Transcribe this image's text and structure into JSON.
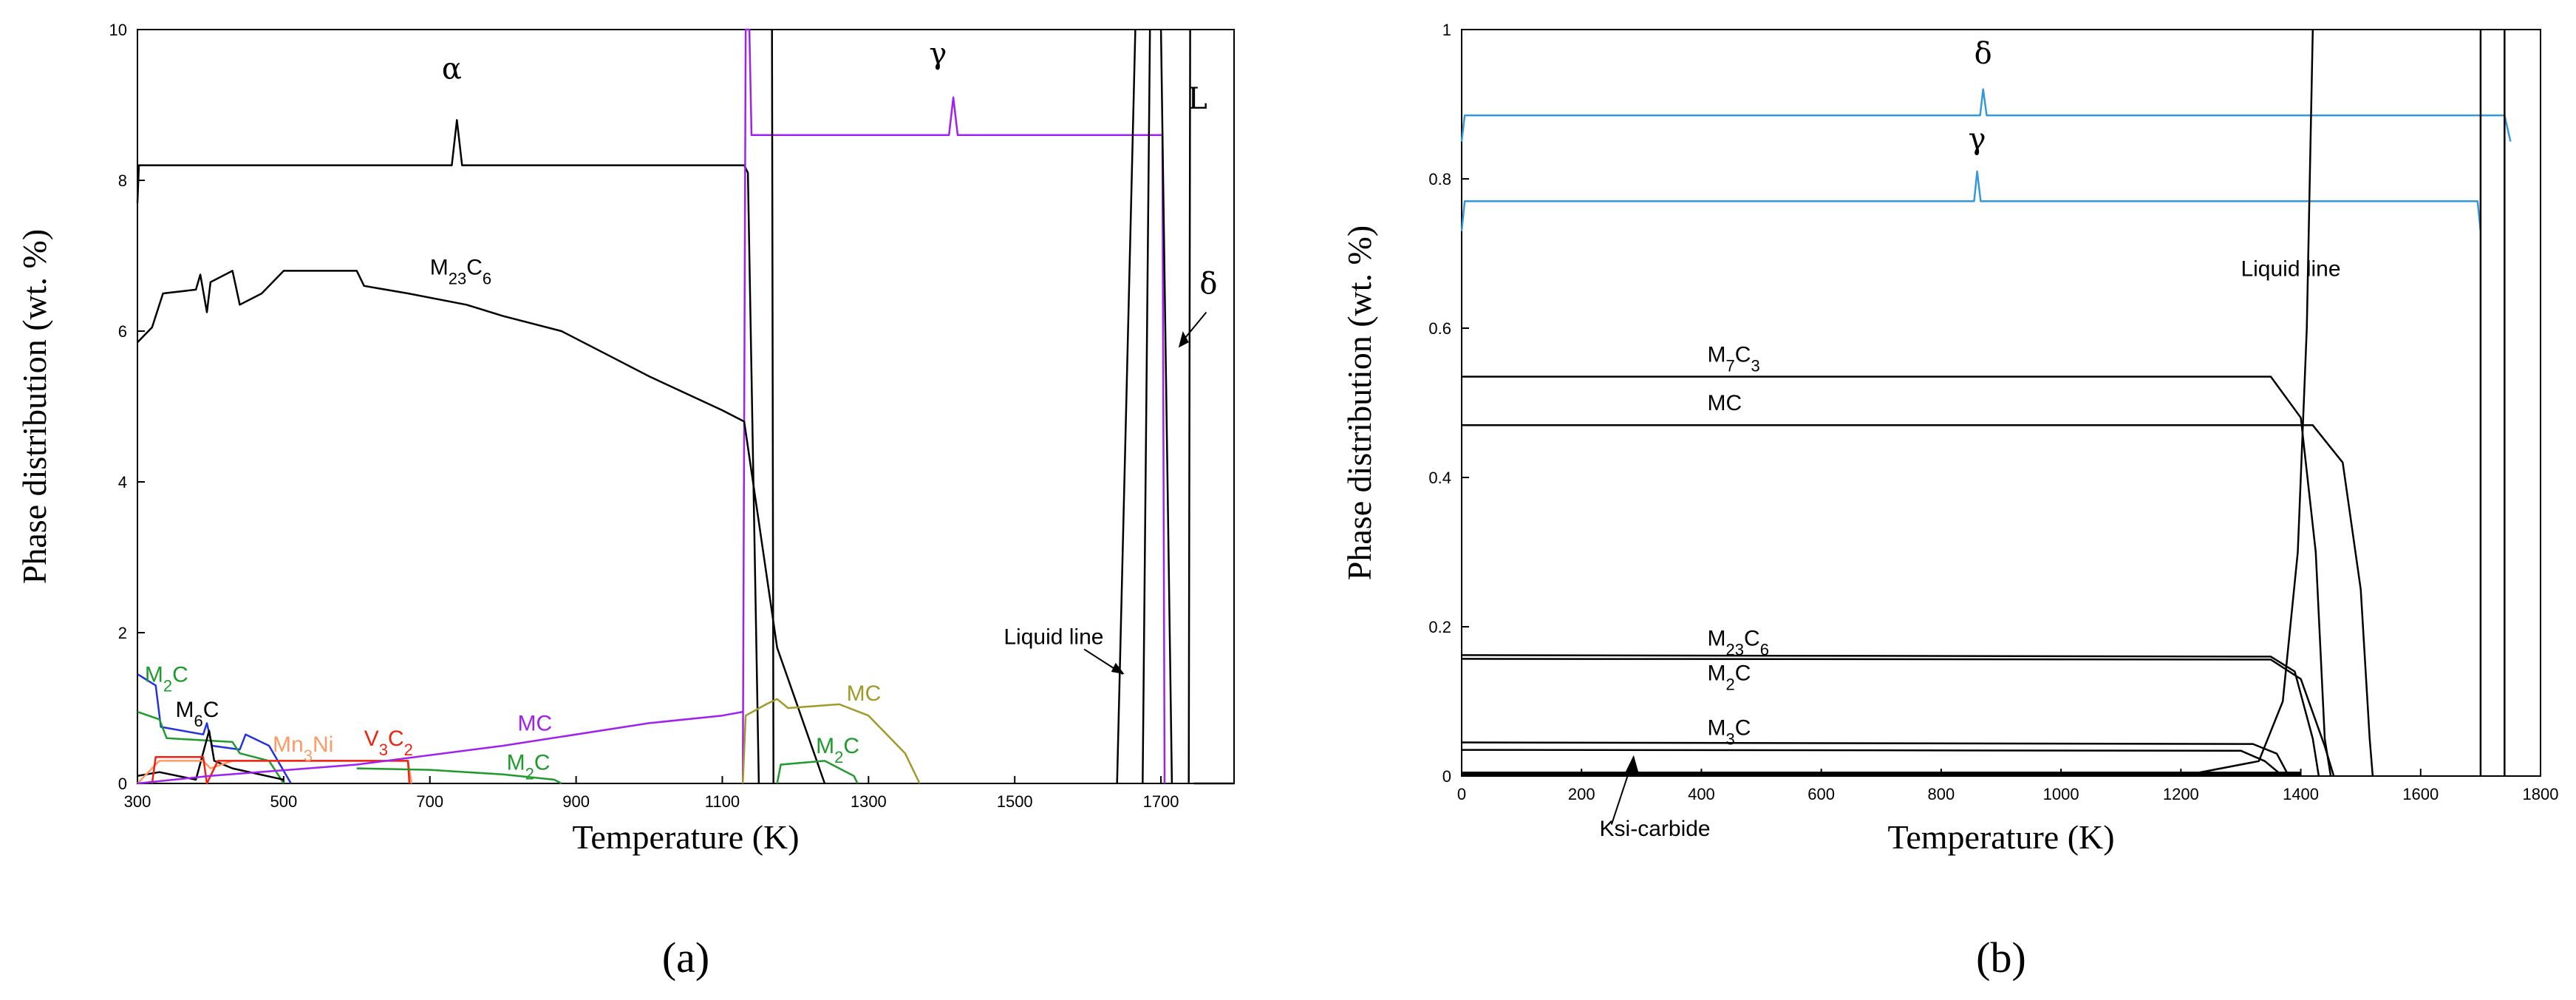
{
  "chart_data": [
    {
      "type": "line",
      "panel_label": "(a)",
      "xlabel": "Temperature (K)",
      "ylabel": "Phase distribution (wt. %)",
      "xlim": [
        300,
        1800
      ],
      "ylim": [
        0,
        10
      ],
      "xticks": [
        "300",
        "500",
        "700",
        "900",
        "1100",
        "1300",
        "1500",
        "1700"
      ],
      "yticks": [
        "0",
        "2",
        "4",
        "6",
        "8",
        "10"
      ],
      "colors": {
        "black": "#000000",
        "purple": "#a020f0",
        "olive": "#a09a2a",
        "green": "#1f9a2c",
        "blue": "#2233dd",
        "red": "#ee2211",
        "orange": "#ff9966"
      },
      "series": [
        {
          "name": "alpha",
          "color": "black",
          "points": [
            [
              300,
              7.7
            ],
            [
              302,
              8.2
            ],
            [
              730,
              8.2
            ],
            [
              737,
              8.8
            ],
            [
              744,
              8.2
            ],
            [
              1130,
              8.2
            ],
            [
              1135,
              8.1
            ],
            [
              1150,
              0
            ]
          ]
        },
        {
          "name": "gamma",
          "color": "purple",
          "points": [
            [
              1128,
              0
            ],
            [
              1132,
              10
            ],
            [
              1137,
              10
            ],
            [
              1140,
              8.6
            ],
            [
              1410,
              8.6
            ],
            [
              1416,
              9.1
            ],
            [
              1422,
              8.6
            ],
            [
              1702,
              8.6
            ],
            [
              1705,
              0
            ]
          ]
        },
        {
          "name": "liquid-vertical-1",
          "color": "black",
          "points": [
            [
              1168,
              10
            ],
            [
              1170,
              0
            ]
          ]
        },
        {
          "name": "liquid-vertical-2",
          "color": "black",
          "points": [
            [
              1700,
              10
            ],
            [
              1715,
              0
            ]
          ]
        },
        {
          "name": "liquid-vertical-3",
          "color": "black",
          "points": [
            [
              1740,
              10
            ],
            [
              1738,
              0
            ]
          ]
        },
        {
          "name": "liquid-line",
          "color": "black",
          "points": [
            [
              1640,
              0
            ],
            [
              1665,
              10
            ]
          ]
        },
        {
          "name": "liquid-line-2",
          "color": "black",
          "points": [
            [
              1675,
              0
            ],
            [
              1685,
              10
            ]
          ]
        },
        {
          "name": "L-phase",
          "color": "black",
          "points": [
            [
              1745,
              0
            ],
            [
              1800,
              0
            ]
          ]
        },
        {
          "name": "M23C6",
          "color": "black",
          "points": [
            [
              300,
              5.85
            ],
            [
              320,
              6.05
            ],
            [
              335,
              6.5
            ],
            [
              380,
              6.55
            ],
            [
              386,
              6.75
            ],
            [
              395,
              6.25
            ],
            [
              400,
              6.65
            ],
            [
              430,
              6.8
            ],
            [
              440,
              6.35
            ],
            [
              470,
              6.5
            ],
            [
              500,
              6.8
            ],
            [
              600,
              6.8
            ],
            [
              610,
              6.6
            ],
            [
              670,
              6.5
            ],
            [
              750,
              6.35
            ],
            [
              800,
              6.2
            ],
            [
              880,
              6.0
            ],
            [
              950,
              5.65
            ],
            [
              1000,
              5.4
            ],
            [
              1100,
              4.95
            ],
            [
              1130,
              4.8
            ],
            [
              1175,
              1.8
            ],
            [
              1240,
              0
            ]
          ]
        },
        {
          "name": "M2C-high",
          "color": "blue",
          "points": [
            [
              300,
              1.45
            ],
            [
              325,
              1.3
            ],
            [
              332,
              0.75
            ],
            [
              390,
              0.65
            ],
            [
              395,
              0.8
            ],
            [
              402,
              0.5
            ],
            [
              440,
              0.45
            ],
            [
              448,
              0.65
            ],
            [
              480,
              0.5
            ],
            [
              510,
              0
            ]
          ]
        },
        {
          "name": "M2C-low",
          "color": "green",
          "points": [
            [
              300,
              0.95
            ],
            [
              330,
              0.85
            ],
            [
              340,
              0.6
            ],
            [
              430,
              0.55
            ],
            [
              440,
              0.4
            ],
            [
              480,
              0.3
            ],
            [
              500,
              0
            ]
          ]
        },
        {
          "name": "M6C",
          "color": "black",
          "points": [
            [
              300,
              0.1
            ],
            [
              330,
              0.15
            ],
            [
              380,
              0.05
            ],
            [
              398,
              0.7
            ],
            [
              405,
              0.3
            ],
            [
              430,
              0.2
            ],
            [
              500,
              0.05
            ]
          ]
        },
        {
          "name": "Mn3Ni",
          "color": "orange",
          "points": [
            [
              300,
              0
            ],
            [
              330,
              0.3
            ],
            [
              390,
              0.3
            ],
            [
              400,
              0.2
            ],
            [
              430,
              0.3
            ],
            [
              670,
              0.3
            ],
            [
              675,
              0
            ]
          ]
        },
        {
          "name": "V3C2",
          "color": "red",
          "points": [
            [
              320,
              0
            ],
            [
              325,
              0.35
            ],
            [
              390,
              0.35
            ],
            [
              395,
              0
            ],
            [
              410,
              0.3
            ],
            [
              670,
              0.3
            ],
            [
              672,
              0
            ]
          ]
        },
        {
          "name": "MC-low",
          "color": "purple",
          "points": [
            [
              300,
              0
            ],
            [
              400,
              0.1
            ],
            [
              600,
              0.25
            ],
            [
              800,
              0.5
            ],
            [
              1000,
              0.8
            ],
            [
              1100,
              0.9
            ],
            [
              1128,
              0.95
            ]
          ]
        },
        {
          "name": "M2C-mid",
          "color": "green",
          "points": [
            [
              600,
              0.2
            ],
            [
              700,
              0.18
            ],
            [
              800,
              0.12
            ],
            [
              870,
              0.05
            ],
            [
              880,
              0
            ]
          ]
        },
        {
          "name": "MC-high",
          "color": "olive",
          "points": [
            [
              1128,
              0
            ],
            [
              1132,
              0.9
            ],
            [
              1160,
              1.05
            ],
            [
              1175,
              1.12
            ],
            [
              1190,
              1.0
            ],
            [
              1260,
              1.05
            ],
            [
              1300,
              0.9
            ],
            [
              1350,
              0.4
            ],
            [
              1370,
              0
            ]
          ]
        },
        {
          "name": "M2C-hot",
          "color": "green",
          "points": [
            [
              1175,
              0
            ],
            [
              1180,
              0.25
            ],
            [
              1240,
              0.3
            ],
            [
              1280,
              0.1
            ],
            [
              1285,
              0
            ]
          ]
        }
      ],
      "annotations": [
        {
          "text": "α",
          "x": 730,
          "y": 9.35
        },
        {
          "text": "γ",
          "x": 1395,
          "y": 9.55
        },
        {
          "text": "L",
          "x": 1750,
          "y": 8.95
        },
        {
          "text": "δ",
          "x": 1765,
          "y": 6.5
        },
        {
          "text": "M23C6",
          "x": 700,
          "y": 6.75
        },
        {
          "text": "Liquid line",
          "x": 1485,
          "y": 1.85
        },
        {
          "text": "MC",
          "x": 1270,
          "y": 1.1
        },
        {
          "text": "MC",
          "x": 820,
          "y": 0.7
        },
        {
          "text": "M2C",
          "x": 1228,
          "y": 0.4
        },
        {
          "text": "M2C",
          "x": 310,
          "y": 1.35
        },
        {
          "text": "M6C",
          "x": 352,
          "y": 0.88
        },
        {
          "text": "Mn3Ni",
          "x": 485,
          "y": 0.42
        },
        {
          "text": "V3C2",
          "x": 610,
          "y": 0.5
        },
        {
          "text": "M2C",
          "x": 805,
          "y": 0.18
        }
      ]
    },
    {
      "type": "line",
      "panel_label": "(b)",
      "xlabel": "Temperature (K)",
      "ylabel": "Phase distribution (wt. %)",
      "xlim": [
        0,
        1800
      ],
      "ylim": [
        0,
        1
      ],
      "xticks": [
        "0",
        "200",
        "400",
        "600",
        "800",
        "1000",
        "1200",
        "1400",
        "1600",
        "1800"
      ],
      "yticks": [
        "0",
        "0.2",
        "0.4",
        "0.6",
        "0.8",
        "1"
      ],
      "colors": {
        "black": "#000000",
        "blue": "#3399dd"
      },
      "series": [
        {
          "name": "delta",
          "color": "blue",
          "points": [
            [
              0,
              0.85
            ],
            [
              5,
              0.885
            ],
            [
              865,
              0.885
            ],
            [
              870,
              0.92
            ],
            [
              876,
              0.885
            ],
            [
              1740,
              0.885
            ],
            [
              1750,
              0.85
            ]
          ]
        },
        {
          "name": "gamma",
          "color": "blue",
          "points": [
            [
              0,
              0.73
            ],
            [
              5,
              0.77
            ],
            [
              855,
              0.77
            ],
            [
              860,
              0.81
            ],
            [
              866,
              0.77
            ],
            [
              1695,
              0.77
            ],
            [
              1700,
              0.73
            ]
          ]
        },
        {
          "name": "liquid-line",
          "color": "black",
          "points": [
            [
              1200,
              0
            ],
            [
              1330,
              0.02
            ],
            [
              1370,
              0.1
            ],
            [
              1395,
              0.3
            ],
            [
              1410,
              0.6
            ],
            [
              1420,
              1
            ]
          ]
        },
        {
          "name": "vertical-1700",
          "color": "black",
          "points": [
            [
              1700,
              0
            ],
            [
              1700,
              1
            ]
          ]
        },
        {
          "name": "vertical-1740",
          "color": "black",
          "points": [
            [
              1740,
              0
            ],
            [
              1740,
              1
            ]
          ]
        },
        {
          "name": "M7C3",
          "color": "black",
          "points": [
            [
              0,
              0.535
            ],
            [
              1350,
              0.535
            ],
            [
              1400,
              0.48
            ],
            [
              1425,
              0.3
            ],
            [
              1440,
              0.05
            ],
            [
              1450,
              0
            ]
          ]
        },
        {
          "name": "MC",
          "color": "black",
          "points": [
            [
              0,
              0.47
            ],
            [
              1420,
              0.47
            ],
            [
              1470,
              0.42
            ],
            [
              1500,
              0.25
            ],
            [
              1515,
              0.05
            ],
            [
              1520,
              0
            ]
          ]
        },
        {
          "name": "M23C6",
          "color": "black",
          "points": [
            [
              0,
              0.162
            ],
            [
              1350,
              0.16
            ],
            [
              1390,
              0.14
            ],
            [
              1420,
              0.05
            ],
            [
              1430,
              0
            ]
          ]
        },
        {
          "name": "M2C",
          "color": "black",
          "points": [
            [
              0,
              0.157
            ],
            [
              1350,
              0.156
            ],
            [
              1400,
              0.13
            ],
            [
              1440,
              0.04
            ],
            [
              1455,
              0
            ]
          ]
        },
        {
          "name": "M3C",
          "color": "black",
          "points": [
            [
              0,
              0.045
            ],
            [
              1320,
              0.043
            ],
            [
              1360,
              0.03
            ],
            [
              1380,
              0
            ]
          ]
        },
        {
          "name": "M3C-2",
          "color": "black",
          "points": [
            [
              0,
              0.035
            ],
            [
              1300,
              0.034
            ],
            [
              1340,
              0.02
            ],
            [
              1370,
              0
            ]
          ]
        },
        {
          "name": "Ksi-carbide",
          "color": "black",
          "points": [
            [
              0,
              0.003
            ],
            [
              1400,
              0.003
            ]
          ]
        }
      ],
      "annotations": [
        {
          "text": "δ",
          "x": 870,
          "y": 0.955
        },
        {
          "text": "γ",
          "x": 860,
          "y": 0.84
        },
        {
          "text": "Liquid line",
          "x": 1300,
          "y": 0.67
        },
        {
          "text": "M7C3",
          "x": 410,
          "y": 0.555
        },
        {
          "text": "MC",
          "x": 410,
          "y": 0.49
        },
        {
          "text": "M23C6",
          "x": 410,
          "y": 0.175
        },
        {
          "text": "M2C",
          "x": 410,
          "y": 0.128
        },
        {
          "text": "M3C",
          "x": 410,
          "y": 0.055
        },
        {
          "text": "Ksi-carbide",
          "x": 230,
          "y": -0.08
        }
      ]
    }
  ]
}
